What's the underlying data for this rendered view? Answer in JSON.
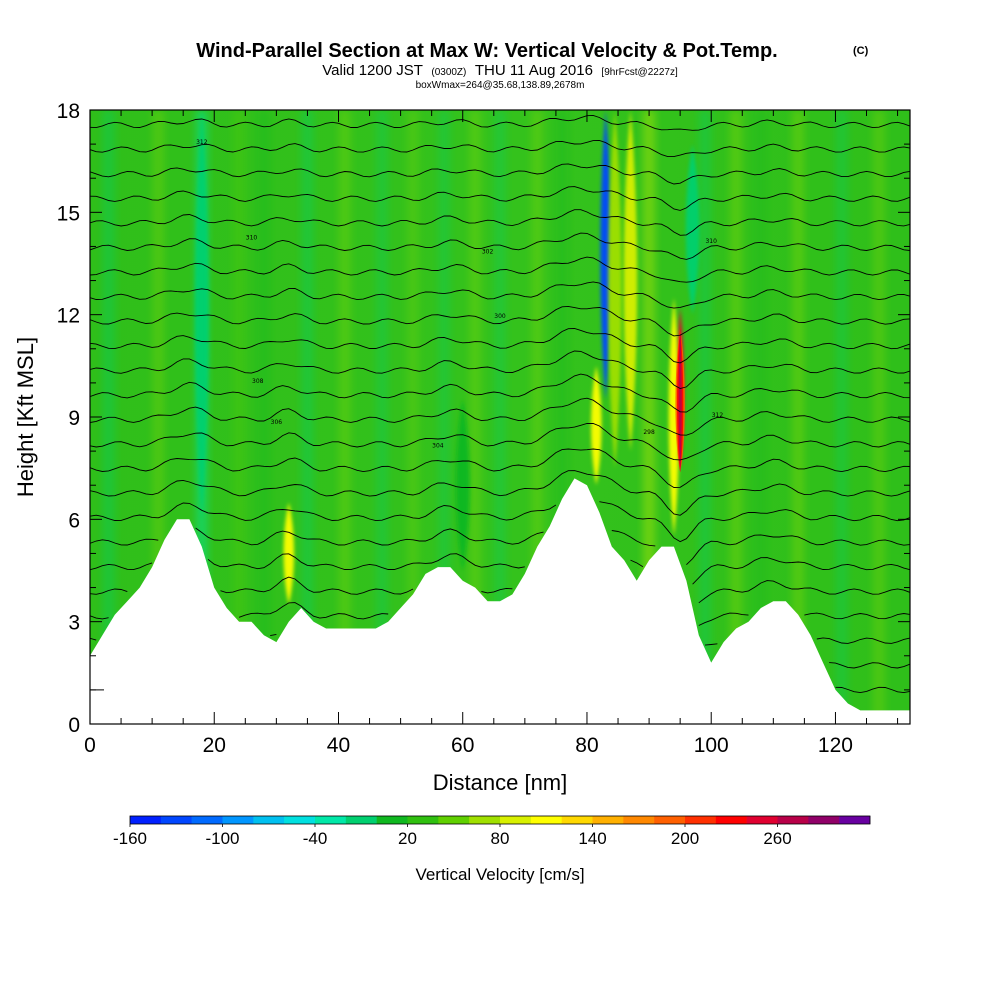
{
  "title": {
    "main": "Wind-Parallel Section at Max W: Vertical Velocity & Pot.Temp.",
    "copyright": "(C)",
    "valid_prefix": "Valid 1200 JST",
    "valid_utc": "(0300Z)",
    "valid_date": "THU 11 Aug 2016",
    "forecast": "[9hrFcst@2227z]",
    "box_wmax": "boxWmax=264@35.68,138.89,2678m"
  },
  "chart_data": {
    "type": "heatmap",
    "xlabel": "Distance [nm]",
    "ylabel": "Height [Kft MSL]",
    "xlim": [
      0,
      132
    ],
    "ylim": [
      0,
      18
    ],
    "xticks": [
      0,
      20,
      40,
      60,
      80,
      100,
      120
    ],
    "yticks": [
      0,
      3,
      6,
      9,
      12,
      15,
      18
    ],
    "terrain_kft": [
      [
        0,
        2.0
      ],
      [
        2,
        2.6
      ],
      [
        4,
        3.2
      ],
      [
        6,
        3.6
      ],
      [
        8,
        4.0
      ],
      [
        10,
        4.6
      ],
      [
        12,
        5.4
      ],
      [
        14,
        6.0
      ],
      [
        16,
        6.0
      ],
      [
        18,
        5.2
      ],
      [
        20,
        4.0
      ],
      [
        22,
        3.4
      ],
      [
        24,
        3.0
      ],
      [
        26,
        3.0
      ],
      [
        28,
        2.6
      ],
      [
        30,
        2.4
      ],
      [
        32,
        3.0
      ],
      [
        34,
        3.4
      ],
      [
        36,
        3.0
      ],
      [
        38,
        2.8
      ],
      [
        40,
        2.8
      ],
      [
        42,
        2.8
      ],
      [
        44,
        2.8
      ],
      [
        46,
        2.8
      ],
      [
        48,
        3.0
      ],
      [
        50,
        3.4
      ],
      [
        52,
        3.8
      ],
      [
        54,
        4.4
      ],
      [
        56,
        4.6
      ],
      [
        58,
        4.6
      ],
      [
        60,
        4.2
      ],
      [
        62,
        4.0
      ],
      [
        64,
        3.6
      ],
      [
        66,
        3.6
      ],
      [
        68,
        3.8
      ],
      [
        70,
        4.4
      ],
      [
        72,
        5.2
      ],
      [
        74,
        5.8
      ],
      [
        76,
        6.6
      ],
      [
        78,
        7.2
      ],
      [
        80,
        7.0
      ],
      [
        82,
        6.2
      ],
      [
        84,
        5.2
      ],
      [
        86,
        4.8
      ],
      [
        88,
        4.2
      ],
      [
        90,
        4.8
      ],
      [
        92,
        5.2
      ],
      [
        94,
        5.2
      ],
      [
        96,
        4.2
      ],
      [
        98,
        2.6
      ],
      [
        100,
        1.8
      ],
      [
        102,
        2.4
      ],
      [
        104,
        2.8
      ],
      [
        106,
        3.0
      ],
      [
        108,
        3.4
      ],
      [
        110,
        3.6
      ],
      [
        112,
        3.6
      ],
      [
        114,
        3.2
      ],
      [
        116,
        2.6
      ],
      [
        118,
        1.8
      ],
      [
        120,
        1.0
      ],
      [
        122,
        0.6
      ],
      [
        124,
        0.4
      ],
      [
        126,
        0.4
      ],
      [
        128,
        0.4
      ],
      [
        130,
        0.4
      ],
      [
        132,
        0.4
      ]
    ],
    "vertical_velocity_features": [
      {
        "x": 83,
        "y_bottom": 9.5,
        "y_top": 18,
        "w": -150
      },
      {
        "x": 84.5,
        "y_bottom": 7.5,
        "y_top": 18,
        "w": 40
      },
      {
        "x": 81.5,
        "y_bottom": 7.0,
        "y_top": 10.5,
        "w": 85
      },
      {
        "x": 95,
        "y_bottom": 7.5,
        "y_top": 12.2,
        "w": 220
      },
      {
        "x": 94,
        "y_bottom": 5.5,
        "y_top": 12.5,
        "w": 90
      },
      {
        "x": 87,
        "y_bottom": 8,
        "y_top": 18,
        "w": 70
      },
      {
        "x": 97,
        "y_bottom": 12,
        "y_top": 17,
        "w": -40
      },
      {
        "x": 32,
        "y_bottom": 3.5,
        "y_top": 6.5,
        "w": 90
      },
      {
        "x": 18,
        "y_bottom": 6,
        "y_top": 18,
        "w": -40
      },
      {
        "x": 60,
        "y_bottom": 4.5,
        "y_top": 9.5,
        "w": -20
      }
    ],
    "theta_contour_labels": [
      "312",
      "310",
      "308",
      "306",
      "304",
      "302",
      "300",
      "298"
    ]
  },
  "colorbar": {
    "label": "Vertical Velocity [cm/s]",
    "tick_labels": [
      "-160",
      "-100",
      "-40",
      "20",
      "80",
      "140",
      "200",
      "260"
    ],
    "colors": [
      "#0020ff",
      "#0046ff",
      "#006aff",
      "#0096ff",
      "#00c0f0",
      "#00e0e0",
      "#00e8a8",
      "#00d070",
      "#10b820",
      "#30c010",
      "#60d000",
      "#a0e000",
      "#d8f000",
      "#ffff00",
      "#ffd800",
      "#ffb000",
      "#ff8800",
      "#ff6000",
      "#ff3000",
      "#ff0000",
      "#e00030",
      "#b80048",
      "#900068",
      "#6800a0"
    ]
  }
}
